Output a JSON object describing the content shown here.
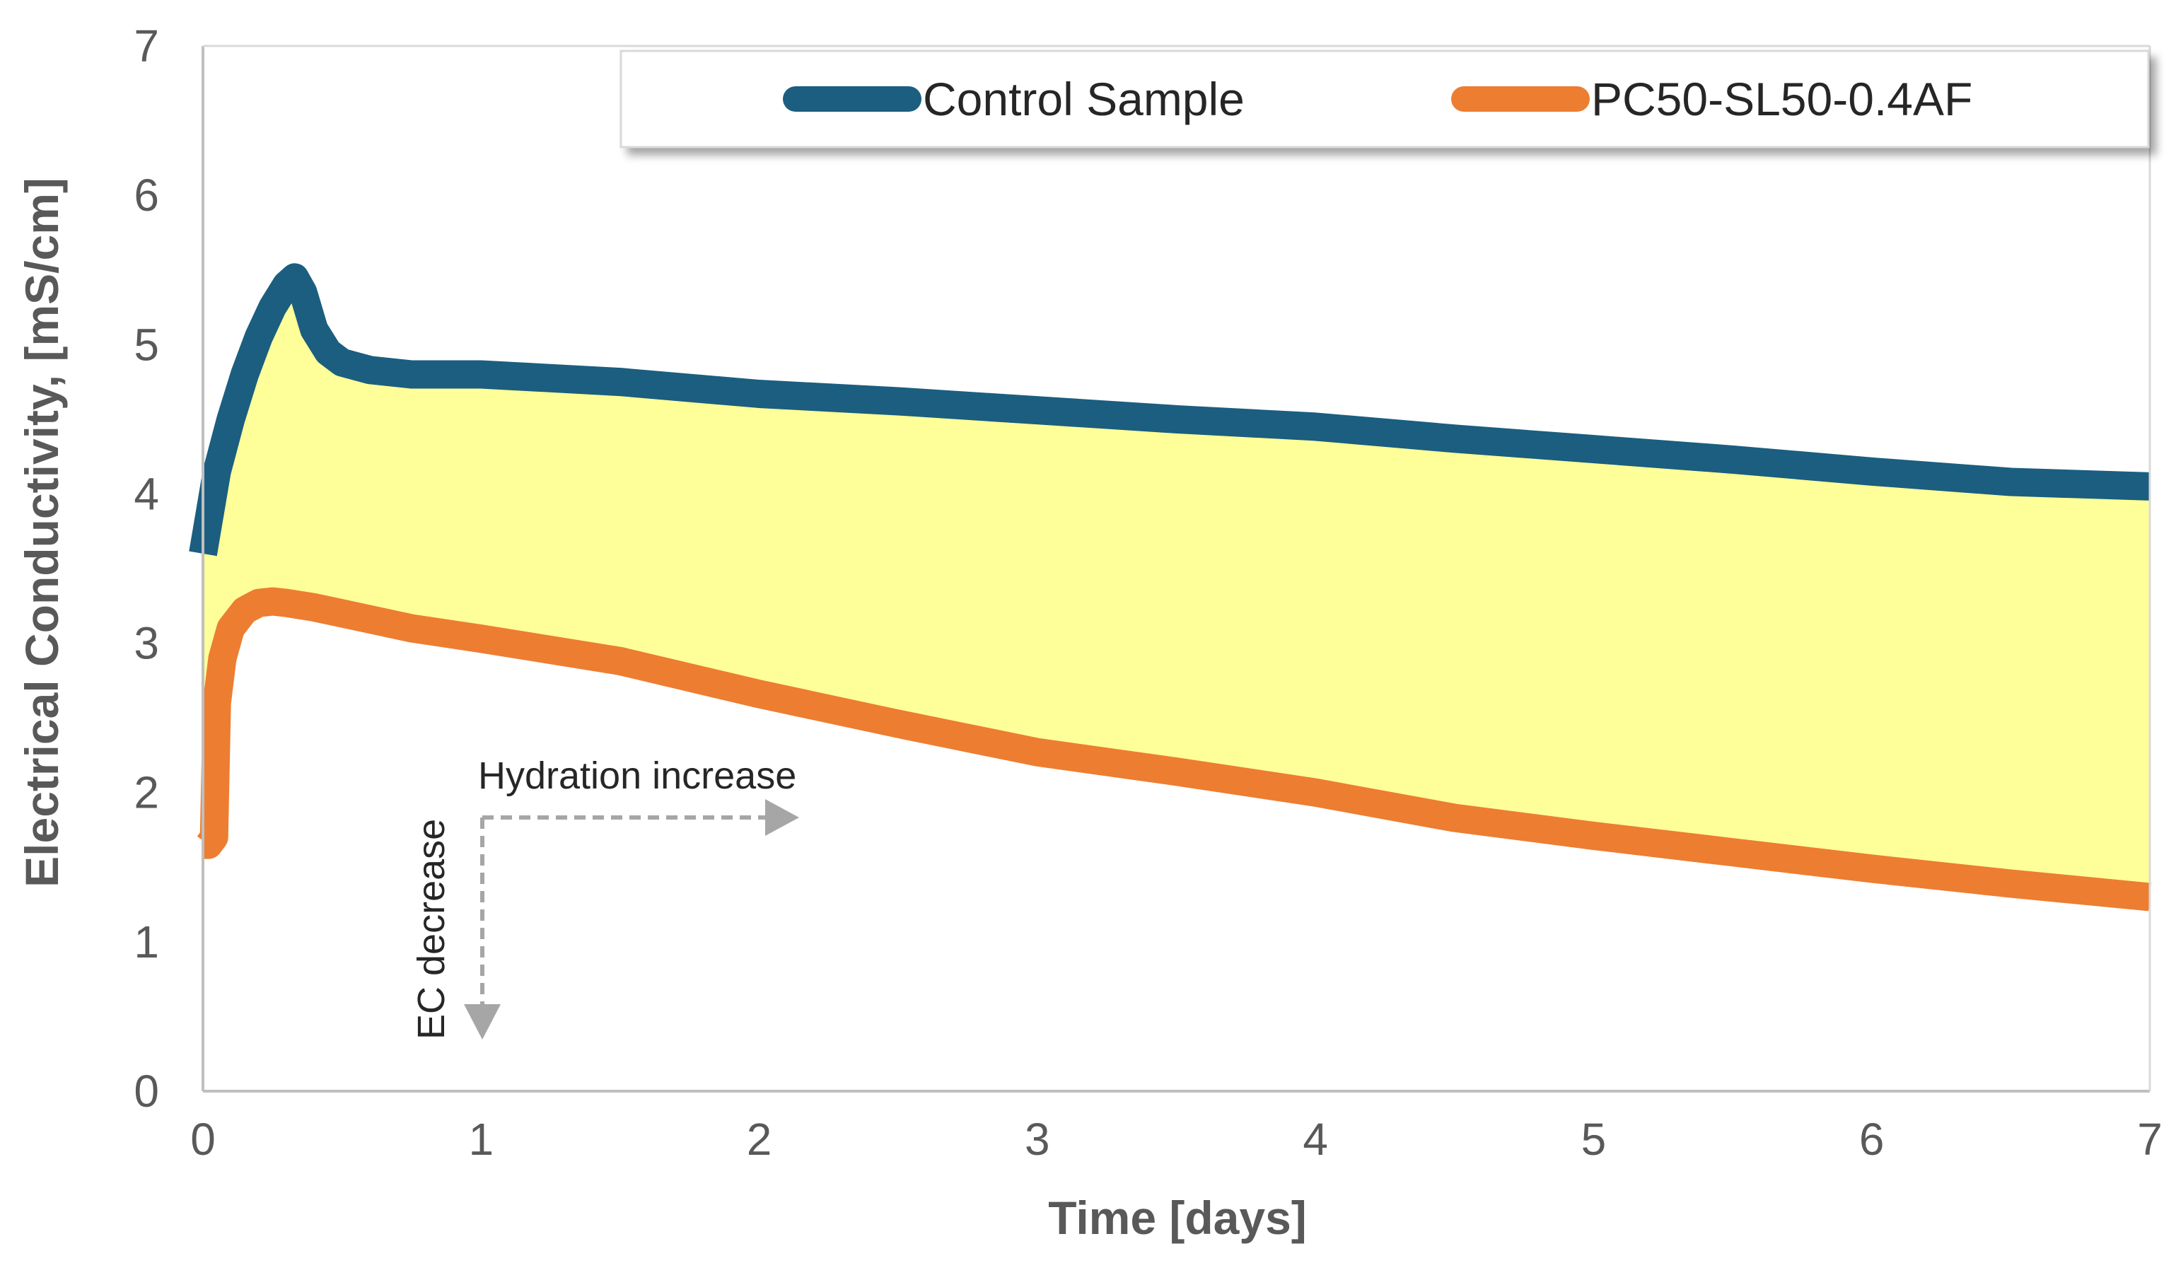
{
  "chart_data": {
    "type": "line",
    "title": "",
    "xlabel": "Time [days]",
    "ylabel": "Electrical Conductivity, [mS/cm]",
    "xlim": [
      0,
      7
    ],
    "ylim": [
      0,
      7
    ],
    "xticks": [
      0,
      1,
      2,
      3,
      4,
      5,
      6,
      7
    ],
    "yticks": [
      0,
      1,
      2,
      3,
      4,
      5,
      6,
      7
    ],
    "grid": false,
    "legend_position": "top-right",
    "series": [
      {
        "name": "Control Sample",
        "color": "#1b5e80",
        "x": [
          0,
          0.05,
          0.1,
          0.15,
          0.2,
          0.25,
          0.3,
          0.33,
          0.36,
          0.4,
          0.45,
          0.5,
          0.6,
          0.75,
          1.0,
          1.5,
          2.0,
          2.5,
          3.0,
          3.5,
          4.0,
          4.5,
          5.0,
          5.5,
          6.0,
          6.5,
          7.0
        ],
        "y": [
          3.6,
          4.15,
          4.5,
          4.8,
          5.05,
          5.25,
          5.4,
          5.45,
          5.35,
          5.1,
          4.95,
          4.88,
          4.83,
          4.8,
          4.8,
          4.75,
          4.67,
          4.62,
          4.56,
          4.5,
          4.45,
          4.37,
          4.3,
          4.23,
          4.15,
          4.08,
          4.05
        ]
      },
      {
        "name": "PC50-SL50-0.4AF",
        "color": "#ed7d31",
        "x": [
          0,
          0.02,
          0.04,
          0.05,
          0.07,
          0.1,
          0.15,
          0.2,
          0.25,
          0.3,
          0.4,
          0.5,
          0.75,
          1.0,
          1.5,
          2.0,
          2.5,
          3.0,
          3.5,
          4.0,
          4.5,
          5.0,
          5.5,
          6.0,
          6.5,
          7.0
        ],
        "y": [
          1.65,
          1.65,
          1.7,
          2.6,
          2.9,
          3.1,
          3.22,
          3.27,
          3.28,
          3.27,
          3.24,
          3.2,
          3.1,
          3.03,
          2.88,
          2.66,
          2.46,
          2.27,
          2.14,
          2.0,
          1.83,
          1.71,
          1.6,
          1.49,
          1.39,
          1.3
        ]
      }
    ],
    "shaded_region": {
      "between": [
        "Control Sample",
        "PC50-SL50-0.4AF"
      ],
      "color": "#ffff99"
    },
    "annotations": {
      "horizontal": "Hydration increase",
      "vertical": "EC decrease"
    }
  }
}
